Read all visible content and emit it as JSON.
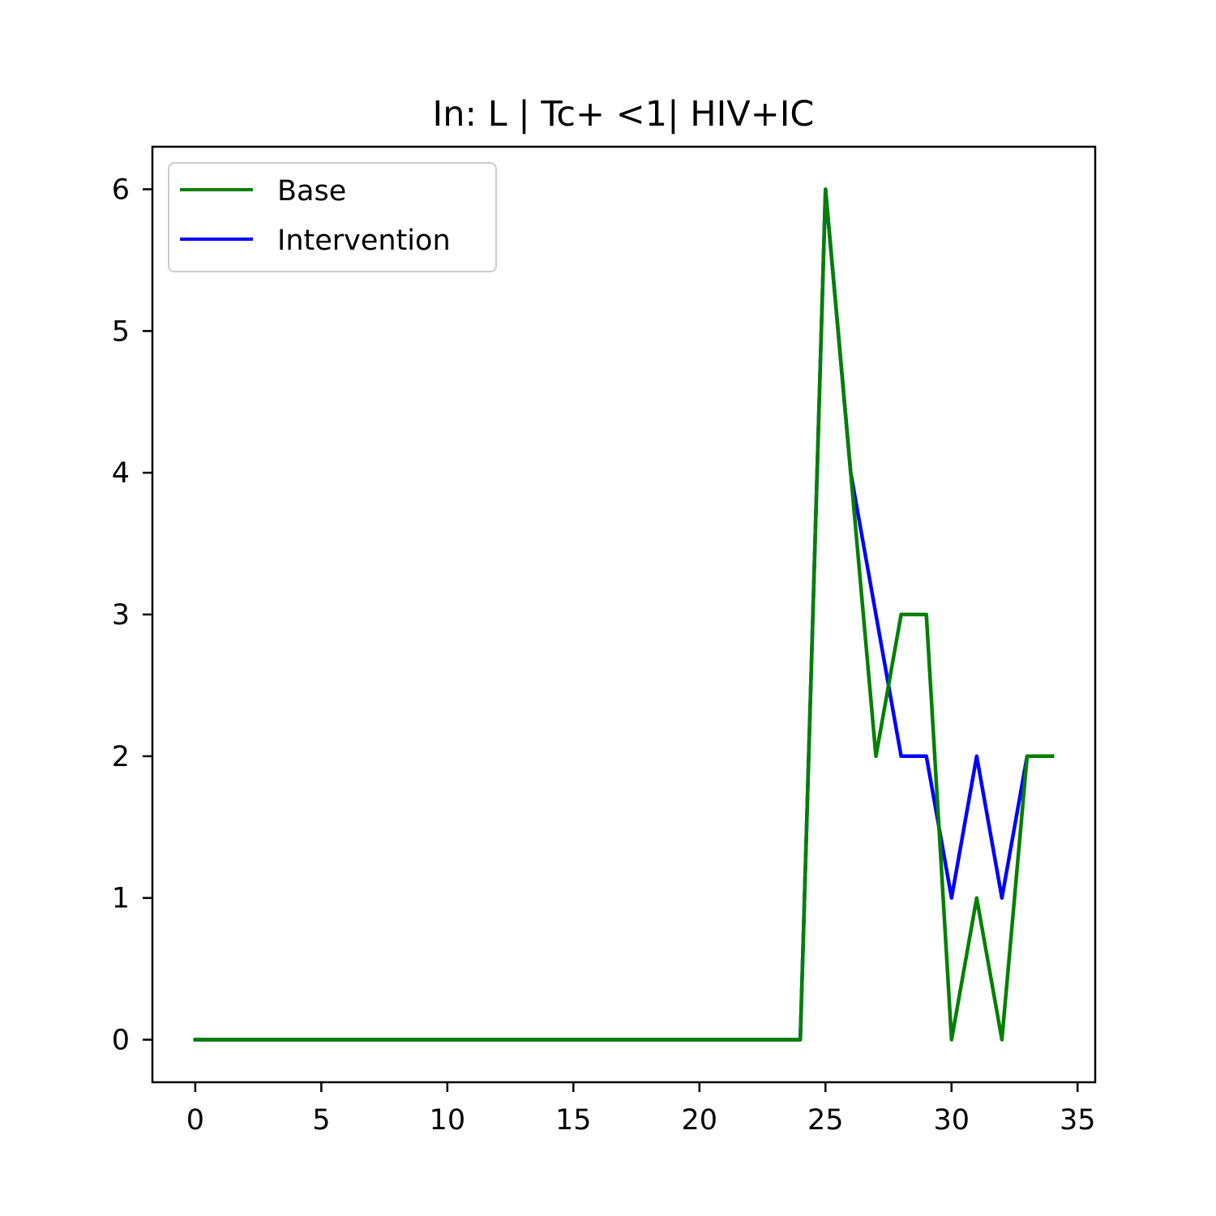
{
  "chart_data": {
    "type": "line",
    "title": "In: L | Tc+ <1| HIV+IC",
    "xlabel": "",
    "ylabel": "",
    "xlim": [
      -1.7,
      35.7
    ],
    "ylim": [
      -0.3,
      6.3
    ],
    "xticks": [
      0,
      5,
      10,
      15,
      20,
      25,
      30,
      35
    ],
    "yticks": [
      0,
      1,
      2,
      3,
      4,
      5,
      6
    ],
    "grid": false,
    "legend_position": "upper-left",
    "x": [
      0,
      1,
      2,
      3,
      4,
      5,
      6,
      7,
      8,
      9,
      10,
      11,
      12,
      13,
      14,
      15,
      16,
      17,
      18,
      19,
      20,
      21,
      22,
      23,
      24,
      25,
      26,
      27,
      28,
      29,
      30,
      31,
      32,
      33,
      34
    ],
    "series": [
      {
        "name": "Intervention",
        "color": "#0000ff",
        "values": [
          0,
          0,
          0,
          0,
          0,
          0,
          0,
          0,
          0,
          0,
          0,
          0,
          0,
          0,
          0,
          0,
          0,
          0,
          0,
          0,
          0,
          0,
          0,
          0,
          0,
          6,
          4,
          3,
          2,
          2,
          1,
          2,
          1,
          2,
          2
        ]
      },
      {
        "name": "Base",
        "color": "#008000",
        "values": [
          0,
          0,
          0,
          0,
          0,
          0,
          0,
          0,
          0,
          0,
          0,
          0,
          0,
          0,
          0,
          0,
          0,
          0,
          0,
          0,
          0,
          0,
          0,
          0,
          0,
          6,
          4,
          2,
          3,
          3,
          0,
          1,
          0,
          2,
          2
        ]
      }
    ],
    "legend": [
      "Base",
      "Intervention"
    ]
  }
}
